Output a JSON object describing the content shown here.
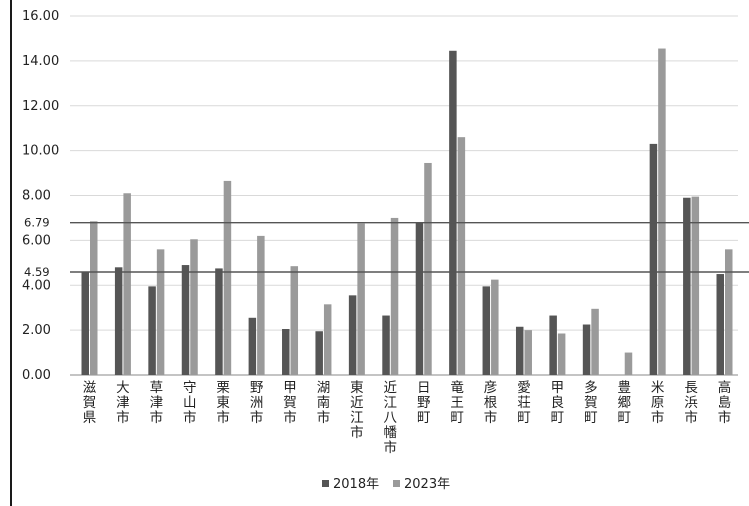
{
  "chart_data": {
    "type": "bar",
    "categories": [
      "滋賀県",
      "大津市",
      "草津市",
      "守山市",
      "栗東市",
      "野洲市",
      "甲賀市",
      "湖南市",
      "東近江市",
      "近江八幡市",
      "日野町",
      "竜王町",
      "彦根市",
      "愛荘町",
      "甲良町",
      "多賀町",
      "豊郷町",
      "米原市",
      "長浜市",
      "高島市"
    ],
    "series": [
      {
        "name": "2018年",
        "color": "#555555",
        "values": [
          4.6,
          4.8,
          3.95,
          4.9,
          4.75,
          2.55,
          2.05,
          1.95,
          3.55,
          2.65,
          6.8,
          14.45,
          3.95,
          2.15,
          2.65,
          2.25,
          null,
          10.3,
          7.9,
          4.5
        ]
      },
      {
        "name": "2023年",
        "color": "#9a9a9a",
        "values": [
          6.85,
          8.1,
          5.6,
          6.05,
          8.65,
          6.2,
          4.85,
          3.15,
          6.75,
          7.0,
          9.45,
          10.6,
          4.25,
          2.0,
          1.85,
          2.95,
          1.0,
          14.55,
          7.95,
          5.6
        ]
      }
    ],
    "ylim": [
      0,
      16
    ],
    "yticks": [
      "0.00",
      "2.00",
      "4.00",
      "6.00",
      "8.00",
      "10.00",
      "12.00",
      "14.00",
      "16.00"
    ],
    "reference_lines": [
      {
        "value": 6.79,
        "label": "6.79"
      },
      {
        "value": 4.59,
        "label": "4.59"
      }
    ],
    "grid": true,
    "legend_position": "bottom"
  }
}
